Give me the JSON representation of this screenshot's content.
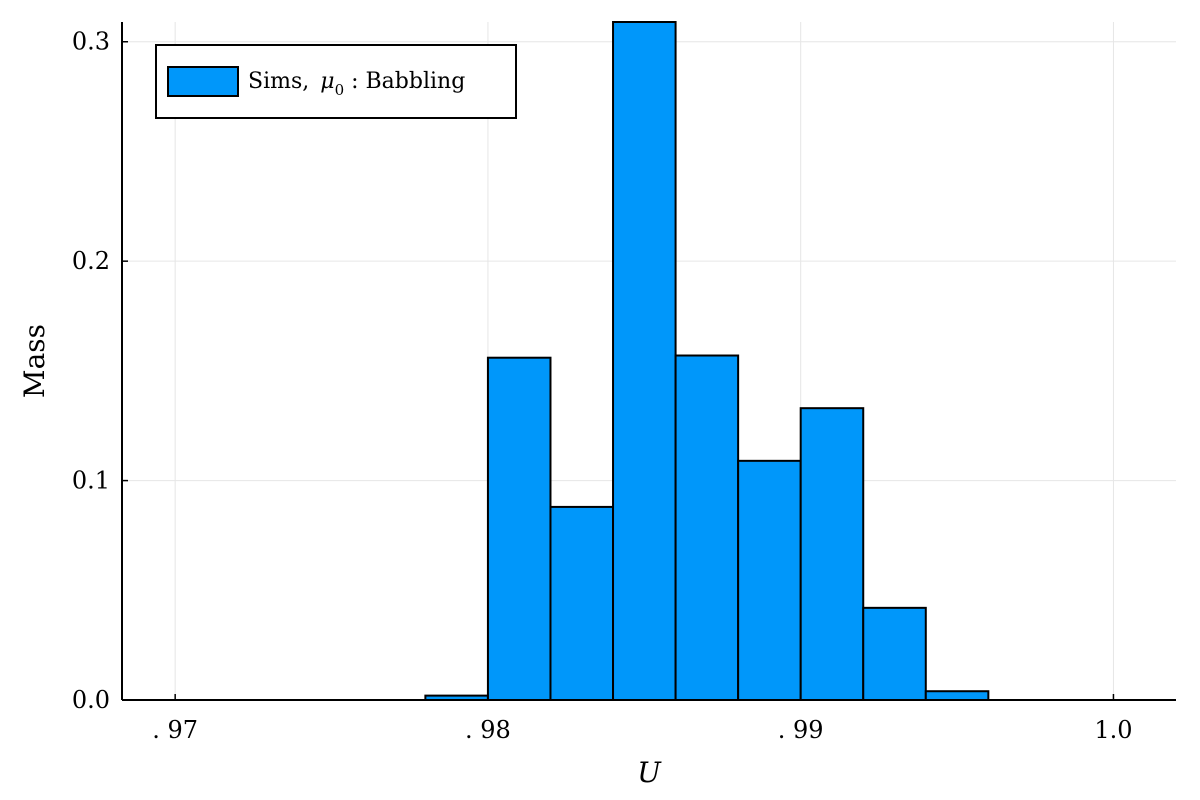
{
  "chart_data": {
    "type": "bar",
    "histogram": true,
    "title": "",
    "xlabel": "U",
    "ylabel": "Mass",
    "xlim": [
      0.9683,
      1.002
    ],
    "ylim": [
      0,
      0.309
    ],
    "x_ticks": [
      {
        "value": 0.97,
        "label": ". 97"
      },
      {
        "value": 0.98,
        "label": ". 98"
      },
      {
        "value": 0.99,
        "label": ". 99"
      },
      {
        "value": 1.0,
        "label": "1.0"
      }
    ],
    "y_ticks": [
      {
        "value": 0.0,
        "label": "0.0"
      },
      {
        "value": 0.1,
        "label": "0.1"
      },
      {
        "value": 0.2,
        "label": "0.2"
      },
      {
        "value": 0.3,
        "label": "0.3"
      }
    ],
    "grid": true,
    "legend_position": "top-left",
    "series": [
      {
        "name": "Sims, μ0 : Babbling",
        "name_main": "Sims, ",
        "name_symbol": "μ",
        "name_subscript": "0",
        "name_tail": " : Babbling",
        "color": "#0097fa",
        "bins": [
          {
            "x0": 0.97,
            "x1": 0.972,
            "value": 0.0
          },
          {
            "x0": 0.972,
            "x1": 0.974,
            "value": 0.0
          },
          {
            "x0": 0.974,
            "x1": 0.976,
            "value": 0.0
          },
          {
            "x0": 0.976,
            "x1": 0.978,
            "value": 0.0
          },
          {
            "x0": 0.978,
            "x1": 0.98,
            "value": 0.002
          },
          {
            "x0": 0.98,
            "x1": 0.982,
            "value": 0.156
          },
          {
            "x0": 0.982,
            "x1": 0.984,
            "value": 0.088
          },
          {
            "x0": 0.984,
            "x1": 0.986,
            "value": 0.309
          },
          {
            "x0": 0.986,
            "x1": 0.988,
            "value": 0.157
          },
          {
            "x0": 0.988,
            "x1": 0.99,
            "value": 0.109
          },
          {
            "x0": 0.99,
            "x1": 0.992,
            "value": 0.133
          },
          {
            "x0": 0.992,
            "x1": 0.994,
            "value": 0.042
          },
          {
            "x0": 0.994,
            "x1": 0.996,
            "value": 0.004
          },
          {
            "x0": 0.996,
            "x1": 0.998,
            "value": 0.0
          },
          {
            "x0": 0.998,
            "x1": 1.0,
            "value": 0.0
          }
        ]
      }
    ]
  }
}
